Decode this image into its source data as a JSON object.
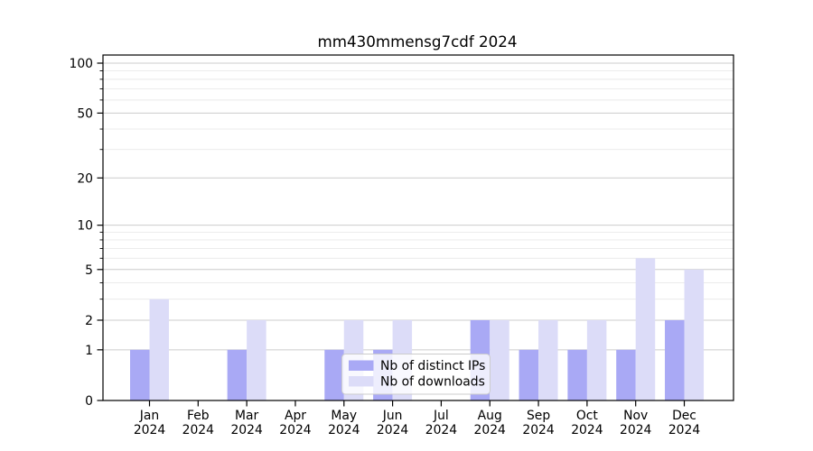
{
  "chart_data": {
    "type": "bar",
    "title": "mm430mmensg7cdf 2024",
    "year_label": "2024",
    "categories": [
      "Jan",
      "Feb",
      "Mar",
      "Apr",
      "May",
      "Jun",
      "Jul",
      "Aug",
      "Sep",
      "Oct",
      "Nov",
      "Dec"
    ],
    "series": [
      {
        "name": "Nb of distinct IPs",
        "color": "#a9a9f5",
        "values": [
          1,
          0,
          1,
          0,
          1,
          1,
          0,
          2,
          1,
          1,
          1,
          2
        ]
      },
      {
        "name": "Nb of downloads",
        "color": "#dcdcf8",
        "values": [
          3,
          0,
          2,
          0,
          2,
          2,
          0,
          2,
          2,
          2,
          6,
          5
        ]
      }
    ],
    "xlabel": "",
    "ylabel": "",
    "yscale": "log1p",
    "ylim": [
      0,
      112
    ],
    "y_major_ticks": [
      0,
      1,
      2,
      5,
      10,
      20,
      50,
      100
    ],
    "y_minor_ticks": [
      3,
      4,
      6,
      7,
      8,
      9,
      30,
      40,
      60,
      70,
      80,
      90
    ],
    "grid": true,
    "legend_position": "lower center",
    "colors": {
      "spine": "#000000",
      "grid_major": "#cccccc",
      "grid_minor": "#e9e9e9",
      "legend_border": "#cccccc",
      "legend_bg": "rgba(255,255,255,0.8)"
    }
  }
}
